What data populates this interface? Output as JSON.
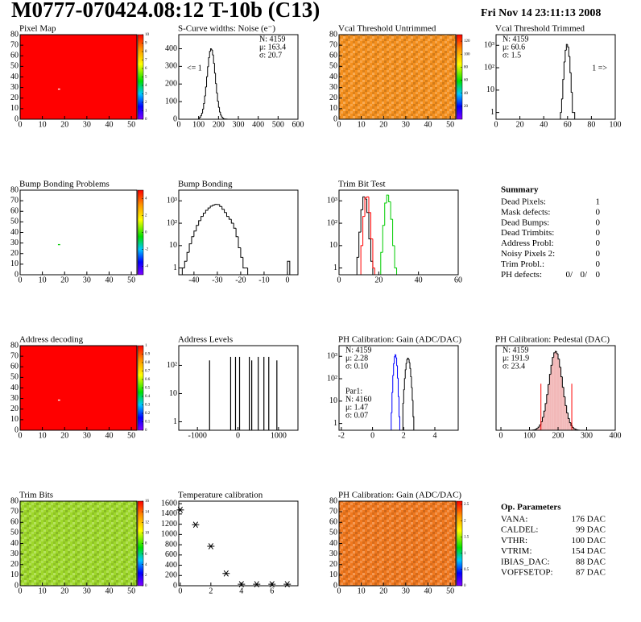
{
  "header": {
    "title": "M0777-070424.08:12 T-10b (C13)",
    "date": "Fri Nov 14 23:11:13 2008"
  },
  "summary": {
    "title": "Summary",
    "rows": [
      {
        "label": "Dead Pixels:",
        "value": 1
      },
      {
        "label": "Mask defects:",
        "value": 0
      },
      {
        "label": "Dead Bumps:",
        "value": 0
      },
      {
        "label": "Dead Trimbits:",
        "value": 0
      },
      {
        "label": "Address Probl:",
        "value": 0
      },
      {
        "label": "Noisy Pixels 2:",
        "value": 0
      },
      {
        "label": "Trim Probl.:",
        "value": 0
      }
    ],
    "ph_defects": {
      "label": "PH defects:",
      "values": [
        "0/",
        "0/",
        "0"
      ],
      "colors": [
        "#000000",
        "#ff0000",
        "#0000ff"
      ]
    }
  },
  "op_parameters": {
    "title": "Op. Parameters",
    "rows": [
      {
        "label": "VANA:",
        "value": "176 DAC"
      },
      {
        "label": "CALDEL:",
        "value": "99 DAC"
      },
      {
        "label": "VTHR:",
        "value": "100 DAC"
      },
      {
        "label": "VTRIM:",
        "value": "154 DAC"
      },
      {
        "label": "IBIAS_DAC:",
        "value": "88 DAC"
      },
      {
        "label": "VOFFSETOP:",
        "value": "87 DAC"
      }
    ]
  },
  "chart_data": [
    {
      "type": "heatmap",
      "title": "Pixel Map",
      "xlim": [
        0,
        52.5
      ],
      "ylim": [
        0,
        80
      ],
      "xticks": [
        0,
        10,
        20,
        30,
        40,
        50
      ],
      "yticks": [
        0,
        10,
        20,
        30,
        40,
        50,
        60,
        70,
        80
      ],
      "zlim": [
        0,
        10
      ],
      "zticks": [
        0,
        1,
        2,
        3,
        4,
        5,
        6,
        7,
        8,
        9,
        10
      ],
      "fill_color": "#ff0000",
      "cells_x": [
        17
      ],
      "cells_y": [
        28
      ],
      "cell_color": "#ffffff"
    },
    {
      "type": "histogram",
      "title": "S-Curve widths: Noise (e⁻)",
      "xlim": [
        0,
        600
      ],
      "xticks": [
        0,
        100,
        200,
        300,
        400,
        500,
        600
      ],
      "ylim": [
        0,
        480
      ],
      "yticks": [
        0,
        100,
        200,
        300,
        400
      ],
      "color": "#000000",
      "bins": [
        100,
        105,
        110,
        115,
        120,
        125,
        130,
        135,
        140,
        145,
        150,
        155,
        160,
        165,
        170,
        175,
        180,
        185,
        190,
        195,
        200,
        205,
        210,
        215,
        220,
        225,
        230,
        235,
        240,
        245,
        250,
        255,
        260
      ],
      "values": [
        5,
        10,
        20,
        34,
        57,
        89,
        132,
        183,
        241,
        298,
        349,
        385,
        400,
        393,
        365,
        318,
        262,
        203,
        149,
        103,
        68,
        41,
        24,
        13,
        7,
        3,
        2,
        1,
        1,
        0,
        0,
        0
      ],
      "stats": [
        {
          "corner": "top-right",
          "color": "#000000",
          "lines": [
            "N: 4159",
            "μ: 163.4",
            "σ: 20.7"
          ]
        }
      ],
      "notes": [
        {
          "text": "<= 1",
          "position": "left"
        }
      ]
    },
    {
      "type": "heatmap",
      "title": "Vcal Threshold Untrimmed",
      "xlim": [
        0,
        52.5
      ],
      "ylim": [
        0,
        80
      ],
      "xticks": [
        0,
        10,
        20,
        30,
        40,
        50
      ],
      "yticks": [
        0,
        10,
        20,
        30,
        40,
        50,
        60,
        70,
        80
      ],
      "zlim": [
        0,
        130
      ],
      "zticks": [
        20,
        40,
        60,
        80,
        100,
        120
      ],
      "fill_color": "#f5901e",
      "texture": true
    },
    {
      "type": "histogram",
      "title": "Vcal Threshold Trimmed",
      "log_y": true,
      "xlim": [
        0,
        100
      ],
      "xticks": [
        0,
        20,
        40,
        60,
        80,
        100
      ],
      "ylim": [
        0.5,
        3000
      ],
      "yticks": [
        1,
        10,
        {
          "value": 100,
          "label": "10²"
        },
        {
          "value": 1000,
          "label": "10³"
        }
      ],
      "color": "#000000",
      "bins": [
        54,
        55,
        56,
        57,
        58,
        59,
        60,
        61,
        62,
        63,
        64,
        65,
        66
      ],
      "values": [
        1,
        4,
        30,
        180,
        600,
        1100,
        850,
        320,
        60,
        8,
        1,
        1
      ],
      "stats": [
        {
          "corner": "top-left",
          "color": "#000000",
          "lines": [
            "N: 4159",
            "μ: 60.6",
            "σ:  1.5"
          ]
        }
      ],
      "notes": [
        {
          "text": "1 =>",
          "position": "right"
        }
      ]
    },
    {
      "type": "heatmap",
      "title": "Bump Bonding Problems",
      "xlim": [
        0,
        52.5
      ],
      "ylim": [
        0,
        80
      ],
      "xticks": [
        0,
        10,
        20,
        30,
        40,
        50
      ],
      "yticks": [
        0,
        10,
        20,
        30,
        40,
        50,
        60,
        70,
        80
      ],
      "zlim": [
        -5,
        5
      ],
      "zticks": [
        -4,
        -2,
        0,
        2,
        4
      ],
      "fill_color": "#ffffff",
      "cells_x": [
        17
      ],
      "cells_y": [
        28
      ],
      "cell_color": "#00cc00"
    },
    {
      "type": "histogram",
      "title": "Bump Bonding",
      "log_y": true,
      "xlim": [
        -46.5,
        4.5
      ],
      "xticks": [
        -40,
        -30,
        -20,
        -10,
        0
      ],
      "ylim": [
        0.5,
        3000
      ],
      "yticks": [
        1,
        10,
        {
          "value": 100,
          "label": "10²"
        },
        {
          "value": 1000,
          "label": "10³"
        }
      ],
      "color": "#000000",
      "bins": [
        -45,
        -44,
        -43,
        -42,
        -41,
        -40,
        -39,
        -38,
        -37,
        -36,
        -35,
        -34,
        -33,
        -32,
        -31,
        -30,
        -29,
        -28,
        -27,
        -26,
        -25,
        -24,
        -23,
        -22,
        -21,
        -20,
        -19,
        -18,
        -17,
        -16,
        -15,
        -14,
        -13,
        -12,
        -11,
        -10,
        -9,
        -8,
        -7,
        -6,
        -5,
        -4,
        -3,
        -2,
        -1,
        0,
        1
      ],
      "values": [
        1,
        2,
        5,
        12,
        25,
        45,
        80,
        130,
        200,
        280,
        380,
        480,
        580,
        650,
        700,
        680,
        560,
        420,
        300,
        200,
        150,
        100,
        60,
        25,
        8,
        3,
        1,
        1,
        0,
        0,
        0,
        0,
        0,
        0,
        0,
        0,
        0,
        0,
        0,
        0,
        0,
        0,
        0,
        0,
        0,
        2
      ]
    },
    {
      "type": "histogram",
      "title": "Trim Bit Test",
      "log_y": true,
      "xlim": [
        0,
        60
      ],
      "xticks": [
        0,
        20,
        40,
        60
      ],
      "ylim": [
        0.5,
        3000
      ],
      "yticks": [
        1,
        10,
        {
          "value": 100,
          "label": "10²"
        },
        {
          "value": 1000,
          "label": "10³"
        }
      ],
      "bins": [
        9,
        10,
        11,
        12,
        13,
        14,
        15,
        16,
        17,
        18,
        19,
        20,
        21,
        22,
        23,
        24,
        25,
        26,
        27,
        28,
        29
      ],
      "series": [
        {
          "color": "#000000",
          "values": [
            3,
            40,
            400,
            1500,
            1200,
            300,
            20,
            2,
            0,
            0,
            0,
            0,
            0,
            0,
            0,
            0,
            0,
            0,
            0,
            0
          ]
        },
        {
          "color": "#ff0000",
          "values": [
            0,
            0,
            10,
            200,
            1400,
            1500,
            300,
            20,
            1,
            0,
            0,
            0,
            0,
            0,
            0,
            0,
            0,
            0,
            0,
            0
          ]
        },
        {
          "color": "#00cc00",
          "values": [
            0,
            0,
            0,
            0,
            0,
            0,
            0,
            0,
            0,
            0,
            0,
            0,
            5,
            80,
            800,
            1800,
            900,
            150,
            10,
            1
          ]
        }
      ]
    },
    {
      "type": "heatmap",
      "title": "Address decoding",
      "xlim": [
        0,
        52.5
      ],
      "ylim": [
        0,
        80
      ],
      "xticks": [
        0,
        10,
        20,
        30,
        40,
        50
      ],
      "yticks": [
        0,
        10,
        20,
        30,
        40,
        50,
        60,
        70,
        80
      ],
      "zlim": [
        0,
        1
      ],
      "zticks": [
        0,
        0.1,
        0.2,
        0.3,
        0.4,
        0.5,
        0.6,
        0.7,
        0.8,
        0.9,
        1
      ],
      "fill_color": "#ff0000",
      "cells_x": [
        17
      ],
      "cells_y": [
        28
      ],
      "cell_color": "#ffffff"
    },
    {
      "type": "spikes",
      "title": "Address Levels",
      "log_y": true,
      "xlim": [
        -1460,
        1480
      ],
      "xticks": [
        -1000,
        0,
        1000
      ],
      "ylim": [
        0.5,
        500
      ],
      "yticks": [
        1,
        10,
        {
          "value": 100,
          "label": "10²"
        }
      ],
      "color": "#000000",
      "x": [
        -700,
        -180,
        -60,
        40,
        280,
        340,
        500,
        640,
        760,
        960
      ],
      "values": [
        150,
        200,
        200,
        200,
        200,
        150,
        200,
        200,
        200,
        150
      ]
    },
    {
      "type": "histogram",
      "title": "PH Calibration: Gain (ADC/DAC)",
      "log_y": true,
      "xlim": [
        -2.15,
        5.5
      ],
      "xticks": [
        -2,
        0,
        2,
        4
      ],
      "ylim": [
        0.5,
        3000
      ],
      "yticks": [
        1,
        10,
        {
          "value": 100,
          "label": "10²"
        },
        {
          "value": 1000,
          "label": "10³"
        }
      ],
      "series": [
        {
          "color": "#000000",
          "bins": [
            1.95,
            2,
            2.05,
            2.1,
            2.15,
            2.2,
            2.25,
            2.3,
            2.35,
            2.4,
            2.45,
            2.5,
            2.55,
            2.6,
            2.65
          ],
          "values": [
            8,
            32,
            101,
            250,
            478,
            714,
            830,
            750,
            530,
            290,
            124,
            41,
            11,
            2
          ]
        },
        {
          "color": "#0000ff",
          "bins": [
            1.2,
            1.25,
            1.3,
            1.35,
            1.4,
            1.45,
            1.5,
            1.55,
            1.6,
            1.65,
            1.7,
            1.75
          ],
          "values": [
            3,
            24,
            139,
            470,
            965,
            1180,
            870,
            385,
            107,
            16,
            2
          ]
        }
      ],
      "stats": [
        {
          "corner": "top-left",
          "color": "#000000",
          "lines": [
            "N: 4159",
            "μ: 2.28",
            "σ: 0.10"
          ]
        },
        {
          "corner": "bottom-left",
          "color": "#0000ff",
          "lines": [
            "Par1:",
            "N: 4160",
            "μ: 1.47",
            "σ: 0.07"
          ]
        }
      ]
    },
    {
      "type": "histogram",
      "title": "PH Calibration: Pedestal (DAC)",
      "xlim": [
        -17,
        400
      ],
      "xticks": [
        0,
        100,
        200,
        300,
        400
      ],
      "ylim": [
        0,
        380
      ],
      "color": "#000000",
      "fill_color": "#f2b8b8",
      "bins": [
        110,
        115,
        120,
        125,
        130,
        135,
        140,
        145,
        150,
        155,
        160,
        165,
        170,
        175,
        180,
        185,
        190,
        195,
        200,
        205,
        210,
        215,
        220,
        225,
        230,
        235,
        240,
        245,
        250,
        255,
        260,
        265,
        270,
        275,
        280
      ],
      "values": [
        1,
        2,
        4,
        8,
        14,
        24,
        38,
        58,
        86,
        120,
        160,
        205,
        251,
        292,
        327,
        348,
        354,
        344,
        320,
        283,
        240,
        193,
        150,
        111,
        78,
        53,
        34,
        21,
        12,
        7,
        4,
        2,
        1,
        0
      ],
      "cuts": [
        140,
        248
      ],
      "cut_color": "#ff0000",
      "stats": [
        {
          "corner": "top-left",
          "line_colors": [
            "#000000",
            "#ff0000",
            "#ff0000"
          ],
          "lines": [
            "N: 4159",
            "μ: 191.9",
            "σ: 23.4"
          ]
        }
      ]
    },
    {
      "type": "heatmap",
      "title": "Trim Bits",
      "xlim": [
        0,
        52.5
      ],
      "ylim": [
        0,
        80
      ],
      "xticks": [
        0,
        10,
        20,
        30,
        40,
        50
      ],
      "yticks": [
        0,
        10,
        20,
        30,
        40,
        50,
        60,
        70,
        80
      ],
      "zlim": [
        0,
        16
      ],
      "zticks": [
        0,
        2,
        4,
        6,
        8,
        10,
        12,
        14,
        16
      ],
      "fill_color": "#9ed82a",
      "texture": true
    },
    {
      "type": "scatter",
      "title": "Temperature calibration",
      "xlim": [
        -0.1,
        7.7
      ],
      "xticks": [
        0,
        2,
        4,
        6
      ],
      "ylim": [
        0,
        1650
      ],
      "yticks": [
        0,
        200,
        400,
        600,
        800,
        1000,
        1200,
        1400,
        1600
      ],
      "color": "#000000",
      "x": [
        0,
        1,
        2,
        3,
        4,
        5,
        6,
        7
      ],
      "values": [
        1480,
        1190,
        770,
        240,
        30,
        30,
        30,
        30
      ]
    },
    {
      "type": "heatmap",
      "title": "PH Calibration: Gain (ADC/DAC)",
      "xlim": [
        0,
        52.5
      ],
      "ylim": [
        0,
        80
      ],
      "xticks": [
        0,
        10,
        20,
        30,
        40,
        50
      ],
      "yticks": [
        0,
        10,
        20,
        30,
        40,
        50,
        60,
        70,
        80
      ],
      "zlim": [
        0,
        2.6
      ],
      "zticks": [
        0,
        0.5,
        1,
        1.5,
        2,
        2.5
      ],
      "fill_color": "#f0781e",
      "texture": true
    }
  ]
}
